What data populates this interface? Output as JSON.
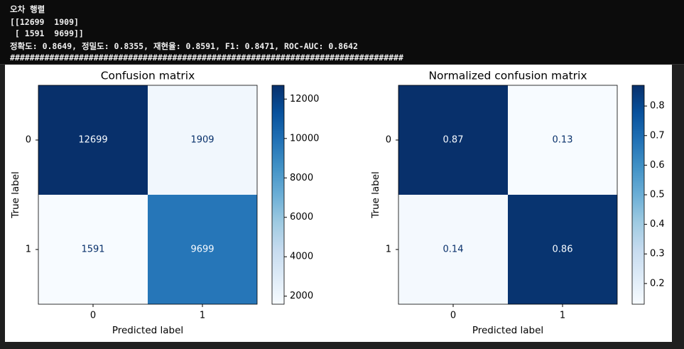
{
  "console": {
    "lines": [
      "오차 행렬",
      "[[12699  1909]",
      " [ 1591  9699]]",
      "정확도: 0.8649, 정밀도: 0.8355, 재현율: 0.8591, F1: 0.8471, ROC-AUC: 0.8642",
      "################################################################################"
    ]
  },
  "chart_data": [
    {
      "type": "heatmap",
      "title": "Confusion matrix",
      "xlabel": "Predicted label",
      "ylabel": "True label",
      "x_categories": [
        "0",
        "1"
      ],
      "y_categories": [
        "0",
        "1"
      ],
      "values": [
        [
          12699,
          1909
        ],
        [
          1591,
          9699
        ]
      ],
      "colormap": "Blues",
      "clim": [
        1591,
        12699
      ],
      "cticks": [
        2000,
        4000,
        6000,
        8000,
        10000,
        12000
      ]
    },
    {
      "type": "heatmap",
      "title": "Normalized confusion matrix",
      "xlabel": "Predicted label",
      "ylabel": "True label",
      "x_categories": [
        "0",
        "1"
      ],
      "y_categories": [
        "0",
        "1"
      ],
      "values": [
        [
          0.87,
          0.13
        ],
        [
          0.14,
          0.86
        ]
      ],
      "colormap": "Blues",
      "clim": [
        0.13,
        0.87
      ],
      "cticks": [
        0.2,
        0.3,
        0.4,
        0.5,
        0.6,
        0.7,
        0.8
      ]
    }
  ]
}
